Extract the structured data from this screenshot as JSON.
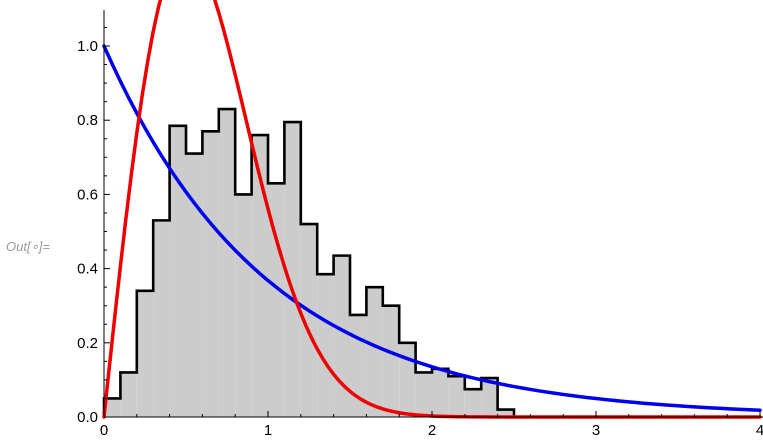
{
  "cell": {
    "out_label": "Out[∘]="
  },
  "chart_data": {
    "type": "histogram_with_curves",
    "title": "",
    "xlabel": "",
    "ylabel": "",
    "xlim": [
      0,
      4
    ],
    "ylim": [
      0,
      1.0
    ],
    "x_ticks": [
      0,
      1,
      2,
      3,
      4
    ],
    "x_tick_labels": [
      "0",
      "1",
      "2",
      "3",
      "4"
    ],
    "y_ticks": [
      0,
      0.2,
      0.4,
      0.6,
      0.8,
      1.0
    ],
    "y_tick_labels": [
      "0.0",
      "0.2",
      "0.4",
      "0.6",
      "0.8",
      "1.0"
    ],
    "histogram": {
      "bin_width": 0.1,
      "bin_starts": [
        0,
        0.1,
        0.2,
        0.3,
        0.4,
        0.5,
        0.6,
        0.7,
        0.8,
        0.9,
        1.0,
        1.1,
        1.2,
        1.3,
        1.4,
        1.5,
        1.6,
        1.7,
        1.8,
        1.9,
        2.0,
        2.1,
        2.2,
        2.3,
        2.4
      ],
      "values": [
        0.05,
        0.12,
        0.34,
        0.53,
        0.785,
        0.71,
        0.77,
        0.83,
        0.6,
        0.76,
        0.63,
        0.795,
        0.52,
        0.385,
        0.435,
        0.275,
        0.35,
        0.3,
        0.2,
        0.12,
        0.13,
        0.11,
        0.075,
        0.105,
        0.02
      ],
      "fill": "#cccccc",
      "stroke": "#000000"
    },
    "series": [
      {
        "function": "exp(-x)",
        "color": "#0000ee",
        "samples": 80
      },
      {
        "function": "4*x*exp(-2*x^2)*(1.0367)",
        "color": "#ee0000",
        "samples": 120
      }
    ],
    "grid": false
  }
}
